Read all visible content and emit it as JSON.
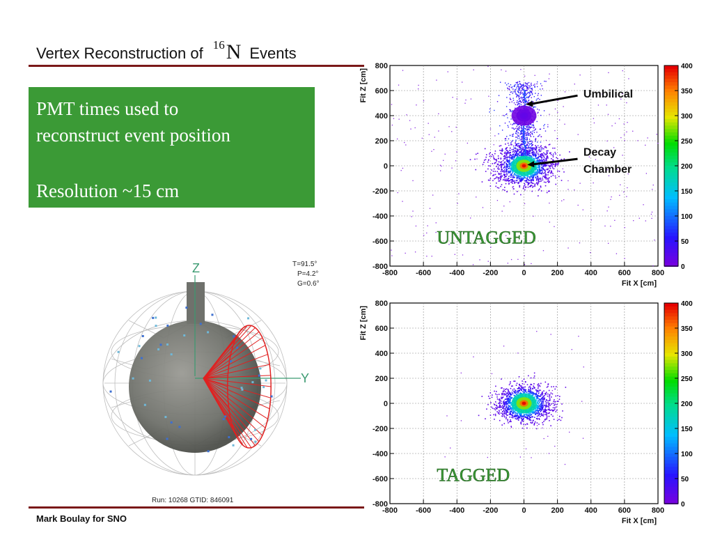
{
  "slide": {
    "title_prefix": "Vertex Reconstruction of",
    "title_isotope_mass": "16",
    "title_element": "N",
    "title_suffix": "Events",
    "bullets": [
      "PMT times used to",
      "reconstruct event position",
      "Resolution ~15 cm"
    ],
    "footer": "Mark Boulay for SNO"
  },
  "event_display": {
    "angles": [
      "T=91.5°",
      "P=4.2°",
      "G=0.6°"
    ],
    "axis_z": "Z",
    "axis_y": "Y",
    "run_info": "Run: 10268  GTID: 846091"
  },
  "chart_data": [
    {
      "type": "heatmap",
      "xlabel": "Fit X [cm]",
      "ylabel": "Fit Z [cm]",
      "xlim": [
        -800,
        800
      ],
      "ylim": [
        -800,
        800
      ],
      "xticks": [
        "-800",
        "-600",
        "-400",
        "-200",
        "0",
        "200",
        "400",
        "600",
        "800"
      ],
      "yticks": [
        "800",
        "600",
        "400",
        "200",
        "0",
        "-200",
        "-400",
        "-600",
        "-800"
      ],
      "color_scale": {
        "min": 0,
        "max": 400,
        "ticks": [
          "400",
          "350",
          "300",
          "250",
          "200",
          "150",
          "100",
          "50",
          "0"
        ]
      },
      "grid": true,
      "hotspots": [
        {
          "x": 0,
          "z": 0,
          "count": 400
        },
        {
          "x": 0,
          "z": 400,
          "count": 20
        }
      ],
      "annotations": {
        "umbilical": "Umbilical",
        "decay": "Decay",
        "chamber": "Chamber",
        "tag": "UNTAGGED"
      },
      "tag_color": "#3b9a36"
    },
    {
      "type": "heatmap",
      "xlabel": "Fit X [cm]",
      "ylabel": "Fit Z [cm]",
      "xlim": [
        -800,
        800
      ],
      "ylim": [
        -800,
        800
      ],
      "xticks": [
        "-800",
        "-600",
        "-400",
        "-200",
        "0",
        "200",
        "400",
        "600",
        "800"
      ],
      "yticks": [
        "800",
        "600",
        "400",
        "200",
        "0",
        "-200",
        "-400",
        "-600",
        "-800"
      ],
      "color_scale": {
        "min": 0,
        "max": 400,
        "ticks": [
          "400",
          "350",
          "300",
          "250",
          "200",
          "150",
          "100",
          "50",
          "0"
        ]
      },
      "grid": true,
      "hotspots": [
        {
          "x": 0,
          "z": 0,
          "count": 400
        }
      ],
      "annotations": {
        "tag": "TAGGED"
      },
      "tag_color": "#3b9a36"
    }
  ]
}
